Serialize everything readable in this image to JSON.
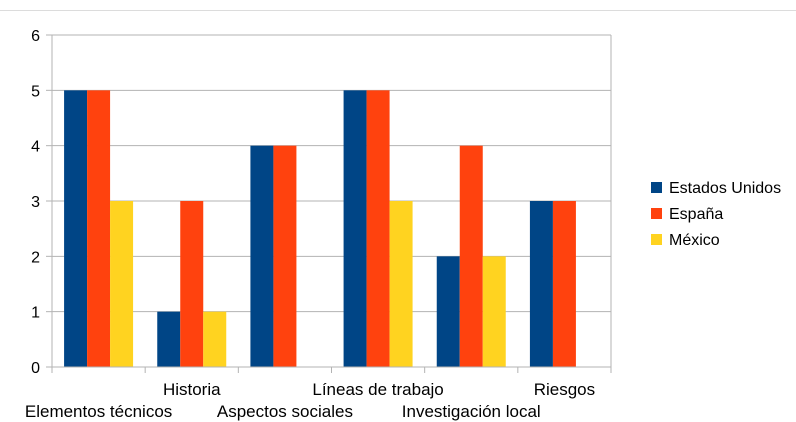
{
  "chart_data": {
    "type": "bar",
    "categories": [
      "Elementos técnicos",
      "Historia",
      "Aspectos sociales",
      "Líneas de trabajo",
      "Investigación local",
      "Riesgos"
    ],
    "series": [
      {
        "name": "Estados Unidos",
        "color": "#004586",
        "values": [
          5,
          1,
          4,
          5,
          2,
          3
        ]
      },
      {
        "name": "España",
        "color": "#ff420e",
        "values": [
          5,
          3,
          4,
          5,
          4,
          3
        ]
      },
      {
        "name": "México",
        "color": "#ffd320",
        "values": [
          3,
          1,
          0,
          3,
          2,
          0
        ]
      }
    ],
    "ylim": [
      0,
      6
    ],
    "yticks": [
      0,
      1,
      2,
      3,
      4,
      5,
      6
    ],
    "grid": true,
    "legend_position": "right",
    "title": "",
    "xlabel": "",
    "ylabel": ""
  }
}
